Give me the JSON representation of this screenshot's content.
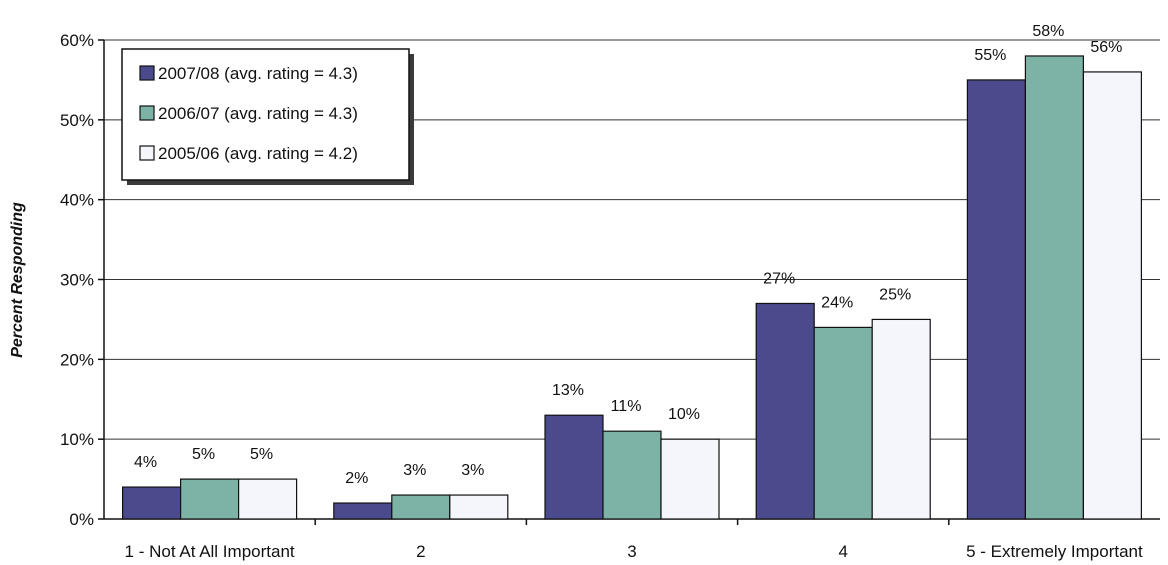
{
  "chart_data": {
    "type": "bar",
    "title": "",
    "xlabel": "",
    "ylabel": "Percent Responding",
    "ylim": [
      0,
      60
    ],
    "yticks": [
      "0%",
      "10%",
      "20%",
      "30%",
      "40%",
      "50%",
      "60%"
    ],
    "grid": true,
    "legend_position": "top-left",
    "categories": [
      "1 - Not At All Important",
      "2",
      "3",
      "4",
      "5 - Extremely Important"
    ],
    "series": [
      {
        "name": "2007/08 (avg. rating = 4.3)",
        "color": "#4a4a8c",
        "values": [
          4,
          2,
          13,
          27,
          55
        ],
        "labels": [
          "4%",
          "2%",
          "13%",
          "27%",
          "55%"
        ]
      },
      {
        "name": "2006/07 (avg. rating = 4.3)",
        "color": "#7db2a6",
        "values": [
          5,
          3,
          11,
          24,
          58
        ],
        "labels": [
          "5%",
          "3%",
          "11%",
          "24%",
          "58%"
        ]
      },
      {
        "name": "2005/06 (avg. rating = 4.2)",
        "color": "#f4f6fb",
        "values": [
          5,
          3,
          10,
          25,
          56
        ],
        "labels": [
          "5%",
          "3%",
          "10%",
          "25%",
          "56%"
        ]
      }
    ]
  }
}
